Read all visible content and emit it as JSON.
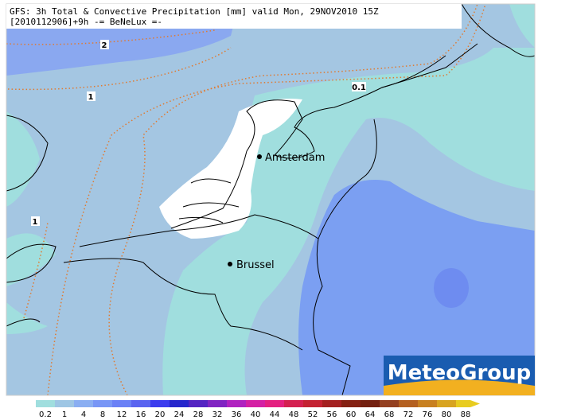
{
  "header": {
    "line1": "GFS: 3h Total & Convective Precipitation [mm] valid Mon, 29NOV2010 15Z",
    "line2": "[2010112906]+9h -= BeNeLux =-"
  },
  "cities": [
    "Amsterdam",
    "Brussel"
  ],
  "contour_labels": [
    "2",
    "1",
    "1",
    "0.1"
  ],
  "logo": "MeteoGroup",
  "legend": {
    "labels": [
      0.2,
      1,
      4,
      8,
      12,
      16,
      20,
      24,
      28,
      32,
      36,
      40,
      44,
      48,
      52,
      56,
      60,
      64,
      68,
      72,
      76,
      80,
      88
    ],
    "colors": [
      "#a0dede",
      "#9ec6e4",
      "#8aaef2",
      "#7896f6",
      "#6a80f6",
      "#5a64f0",
      "#3c3cee",
      "#2626cc",
      "#5424c2",
      "#8024c2",
      "#b022c0",
      "#d420a4",
      "#e42080",
      "#d42050",
      "#c42232",
      "#a42020",
      "#842012",
      "#742010",
      "#944020",
      "#b46020",
      "#c88020",
      "#d8a420",
      "#e8cc20"
    ]
  }
}
